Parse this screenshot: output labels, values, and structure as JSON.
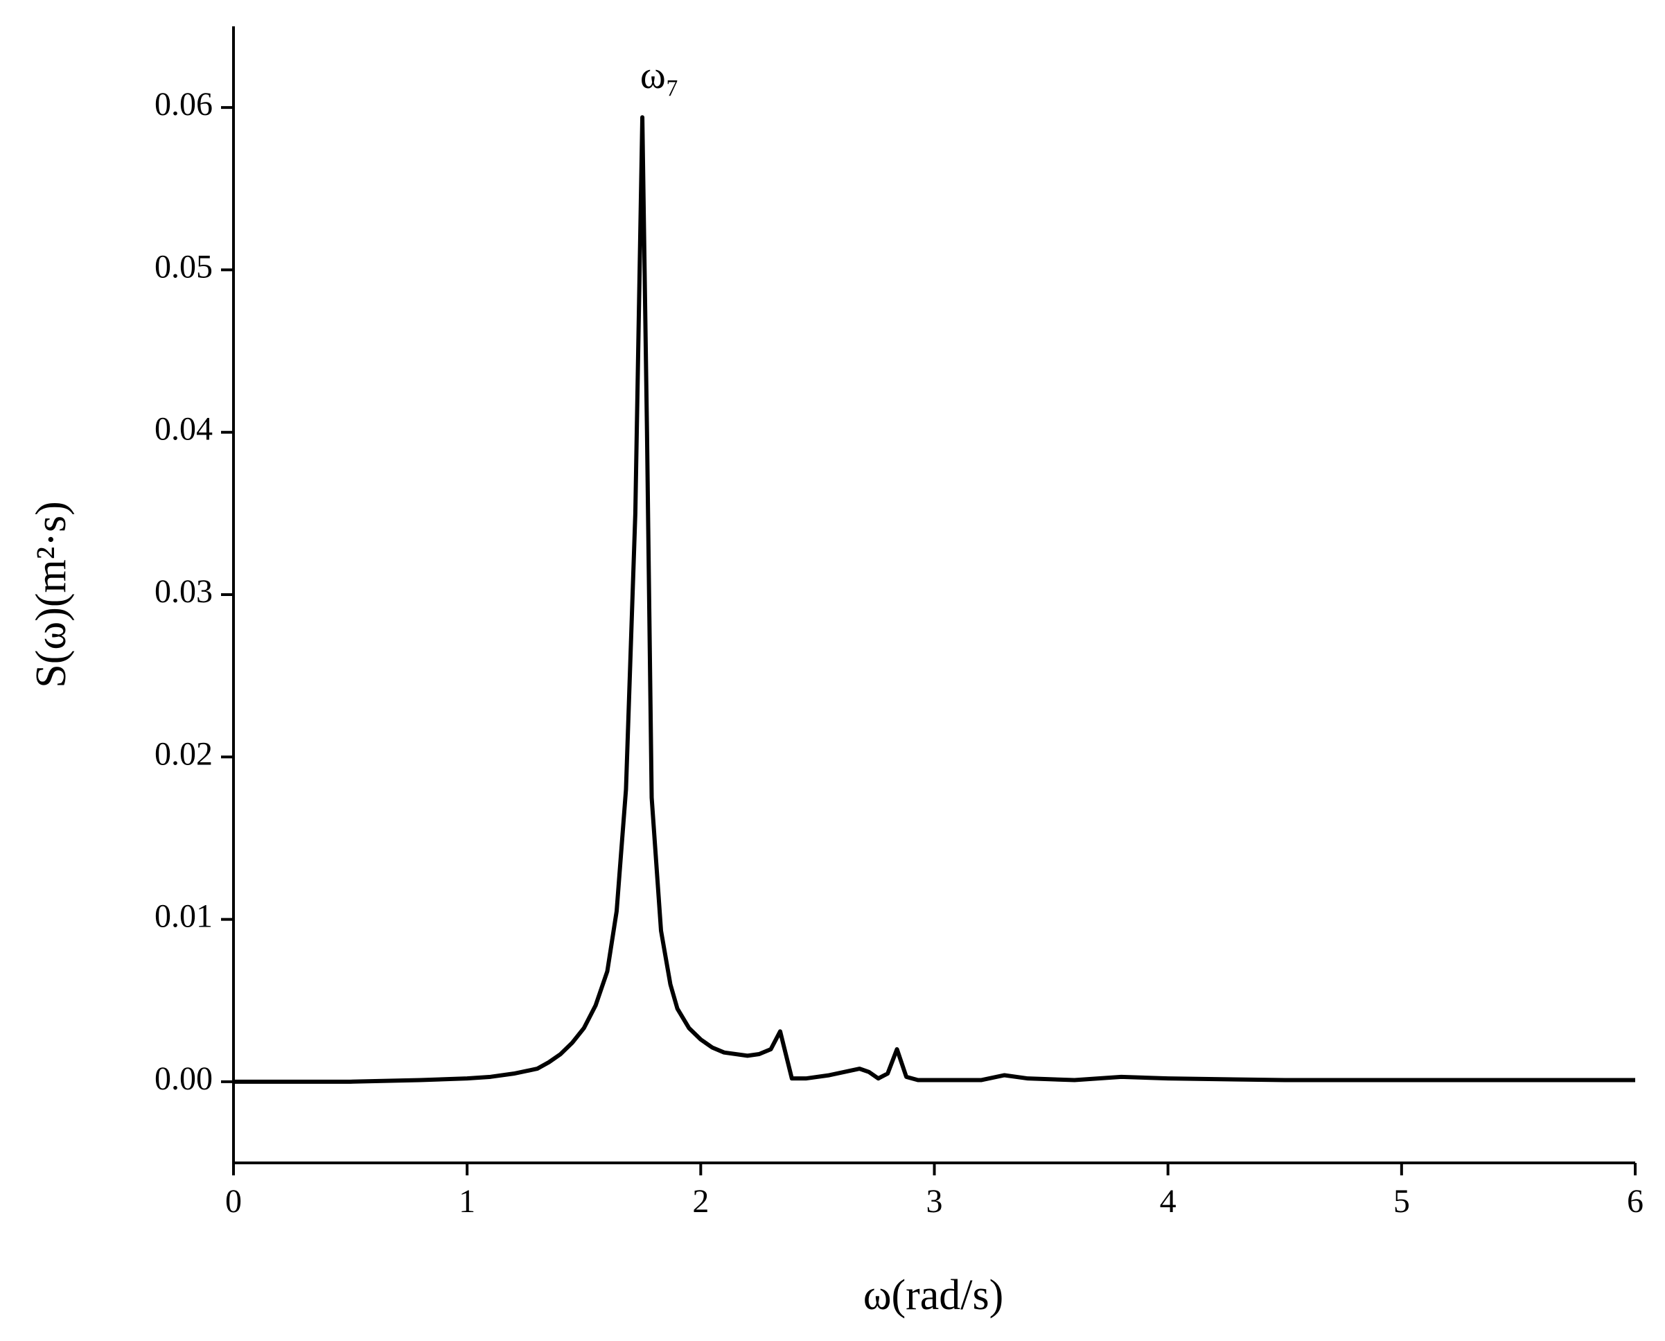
{
  "chart_data": {
    "type": "line",
    "xlabel": "ω(rad/s)",
    "ylabel": "S(ω)(m²·s)",
    "annotation": "ω₇",
    "annotation_x": 1.75,
    "annotation_y": 0.0594,
    "xlim": [
      0,
      6
    ],
    "ylim": [
      -0.005,
      0.065
    ],
    "xticks": [
      0,
      1,
      2,
      3,
      4,
      5,
      6
    ],
    "yticks": [
      {
        "value": 0,
        "label": "0.00"
      },
      0.01,
      0.02,
      0.03,
      0.04,
      0.05,
      0.06
    ],
    "grid": false,
    "series": [
      {
        "color": "#000000",
        "x": [
          0,
          0.5,
          0.8,
          1.0,
          1.1,
          1.2,
          1.3,
          1.35,
          1.4,
          1.45,
          1.5,
          1.55,
          1.6,
          1.64,
          1.68,
          1.72,
          1.75,
          1.77,
          1.79,
          1.83,
          1.87,
          1.9,
          1.95,
          2.0,
          2.05,
          2.1,
          2.2,
          2.25,
          2.3,
          2.34,
          2.39,
          2.45,
          2.55,
          2.68,
          2.72,
          2.76,
          2.8,
          2.84,
          2.88,
          2.93,
          3.0,
          3.2,
          3.3,
          3.4,
          3.6,
          3.8,
          4.0,
          4.5,
          5.0,
          6.0
        ],
        "values": [
          0,
          0,
          0.0001,
          0.0002,
          0.0003,
          0.0005,
          0.0008,
          0.0012,
          0.0017,
          0.0024,
          0.0033,
          0.0047,
          0.0068,
          0.0105,
          0.018,
          0.035,
          0.0594,
          0.04,
          0.0175,
          0.0093,
          0.006,
          0.0045,
          0.0033,
          0.0026,
          0.0021,
          0.0018,
          0.0016,
          0.0017,
          0.002,
          0.0031,
          0.0002,
          0.0002,
          0.0004,
          0.0008,
          0.0006,
          0.0002,
          0.0005,
          0.002,
          0.0003,
          0.0001,
          0.0001,
          0.0001,
          0.0004,
          0.0002,
          0.0001,
          0.0003,
          0.0002,
          0.0001,
          0.0001,
          0.0001
        ]
      }
    ]
  }
}
